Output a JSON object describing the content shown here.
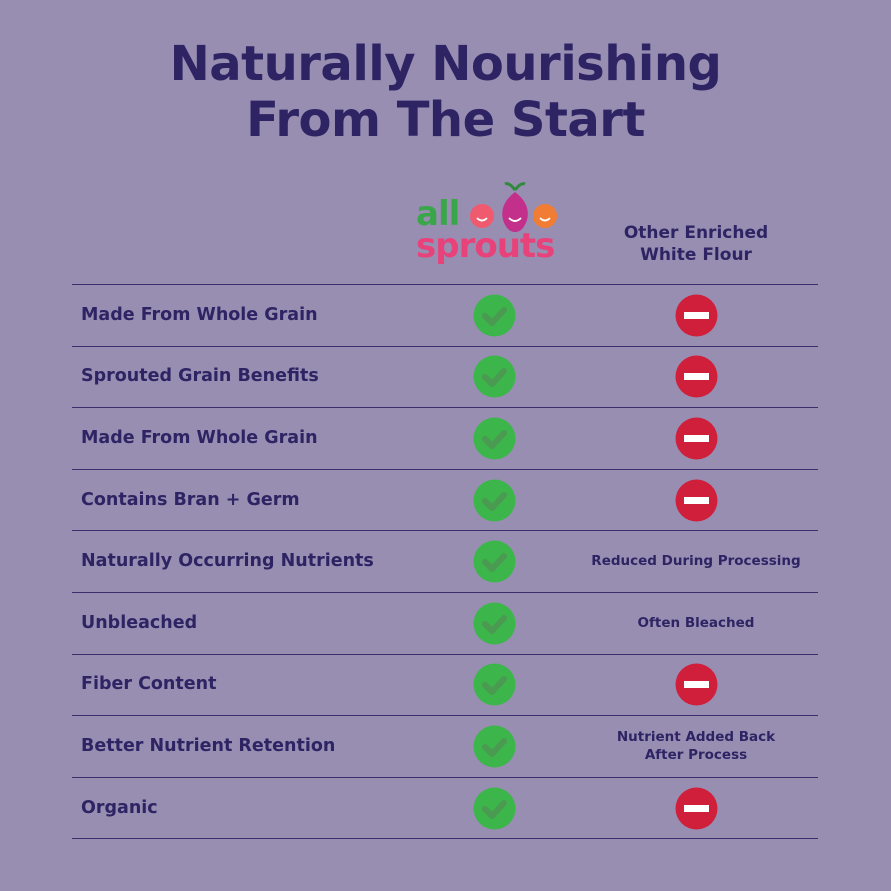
{
  "title": [
    "Naturally Nourishing",
    "From The Start"
  ],
  "brand": {
    "line1": "all",
    "line2": "sprouts"
  },
  "other_header": [
    "Other Enriched",
    "White Flour"
  ],
  "rows": [
    {
      "label": "Made From Whole Grain"
    },
    {
      "label": "Sprouted Grain Benefits"
    },
    {
      "label": "Made From Whole Grain"
    },
    {
      "label": "Contains Bran + Germ"
    },
    {
      "label": "Naturally Occurring Nutrients",
      "other": [
        "Reduced During Processing"
      ]
    },
    {
      "label": "Unbleached",
      "other": [
        "Often Bleached"
      ]
    },
    {
      "label": "Fiber Content"
    },
    {
      "label": "Better Nutrient Retention",
      "other": [
        "Nutrient Added Back",
        "After Process"
      ]
    },
    {
      "label": "Organic"
    }
  ]
}
